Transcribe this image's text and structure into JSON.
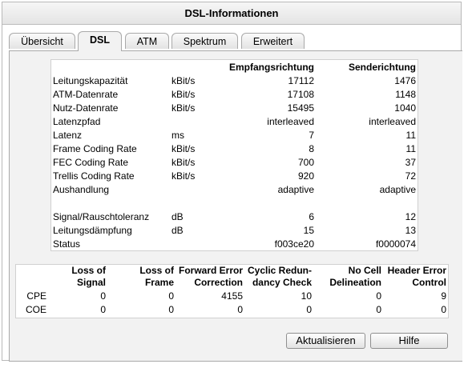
{
  "title": "DSL-Informationen",
  "tabs": [
    "Übersicht",
    "DSL",
    "ATM",
    "Spektrum",
    "Erweitert"
  ],
  "active_tab": "DSL",
  "dsl_table": {
    "headers": [
      "",
      "",
      "Empfangsrichtung",
      "Senderichtung"
    ],
    "rows": [
      {
        "label": "Leitungskapazität",
        "unit": "kBit/s",
        "rx": "17112",
        "tx": "1476"
      },
      {
        "label": "ATM-Datenrate",
        "unit": "kBit/s",
        "rx": "17108",
        "tx": "1148"
      },
      {
        "label": "Nutz-Datenrate",
        "unit": "kBit/s",
        "rx": "15495",
        "tx": "1040"
      },
      {
        "label": "Latenzpfad",
        "unit": "",
        "rx": "interleaved",
        "tx": "interleaved"
      },
      {
        "label": "Latenz",
        "unit": "ms",
        "rx": "7",
        "tx": "11"
      },
      {
        "label": "Frame Coding Rate",
        "unit": "kBit/s",
        "rx": "8",
        "tx": "11"
      },
      {
        "label": "FEC Coding Rate",
        "unit": "kBit/s",
        "rx": "700",
        "tx": "37"
      },
      {
        "label": "Trellis Coding Rate",
        "unit": "kBit/s",
        "rx": "920",
        "tx": "72"
      },
      {
        "label": "Aushandlung",
        "unit": "",
        "rx": "adaptive",
        "tx": "adaptive"
      },
      {
        "label": "",
        "unit": "",
        "rx": "",
        "tx": ""
      },
      {
        "label": "Signal/Rauschtoleranz",
        "unit": "dB",
        "rx": "6",
        "tx": "12"
      },
      {
        "label": "Leitungsdämpfung",
        "unit": "dB",
        "rx": "15",
        "tx": "13"
      },
      {
        "label": "Status",
        "unit": "",
        "rx": "f003ce20",
        "tx": "f0000074"
      }
    ]
  },
  "error_table": {
    "headers": [
      {
        "line1": "Loss of",
        "line2": "Signal"
      },
      {
        "line1": "Loss of",
        "line2": "Frame"
      },
      {
        "line1": "Forward Error",
        "line2": "Correction"
      },
      {
        "line1": "Cyclic Redun-",
        "line2": "dancy Check"
      },
      {
        "line1": "No Cell",
        "line2": "Delineation"
      },
      {
        "line1": "Header Error",
        "line2": "Control"
      }
    ],
    "rows": [
      {
        "label": "CPE",
        "values": [
          "0",
          "0",
          "4155",
          "10",
          "0",
          "9"
        ]
      },
      {
        "label": "COE",
        "values": [
          "0",
          "0",
          "0",
          "0",
          "0",
          "0"
        ]
      }
    ]
  },
  "buttons": {
    "refresh": "Aktualisieren",
    "help": "Hilfe"
  }
}
